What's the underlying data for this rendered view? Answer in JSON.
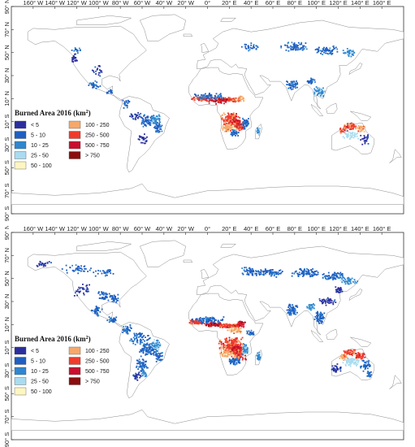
{
  "lon_labels": [
    "160° W",
    "140° W",
    "120° W",
    "100° W",
    "80° W",
    "60° W",
    "40° W",
    "20° W",
    "0°",
    "20° E",
    "40° E",
    "60° E",
    "80° E",
    "100° E",
    "120° E",
    "140° E",
    "160° E"
  ],
  "lat_labels": [
    "90° N",
    "70° N",
    "50° N",
    "30° N",
    "10° N",
    "10° S",
    "30° S",
    "50° S",
    "70° S",
    "90° S"
  ],
  "panels": [
    {
      "legend": {
        "title": "Burned Area 2016 (km²)",
        "items": [
          {
            "label": "< 5",
            "color": "#2b2f9e"
          },
          {
            "label": "5 - 10",
            "color": "#1f5fc0"
          },
          {
            "label": "10 - 25",
            "color": "#2f86cf"
          },
          {
            "label": "25 - 50",
            "color": "#a9dcf0"
          },
          {
            "label": "50 - 100",
            "color": "#fdf6c3"
          },
          {
            "label": "100 - 250",
            "color": "#f6a86a"
          },
          {
            "label": "250 - 500",
            "color": "#f03b2b"
          },
          {
            "label": "500 - 750",
            "color": "#c8102e"
          },
          {
            "label": "> 750",
            "color": "#8c0d0d"
          }
        ]
      }
    },
    {
      "legend": {
        "title": "Burned Area 2016 (km²)",
        "items": [
          {
            "label": "< 5",
            "color": "#2b2f9e"
          },
          {
            "label": "5 - 10",
            "color": "#1f5fc0"
          },
          {
            "label": "10 - 25",
            "color": "#2f86cf"
          },
          {
            "label": "25 - 50",
            "color": "#a9dcf0"
          },
          {
            "label": "50 - 100",
            "color": "#fdf6c3"
          },
          {
            "label": "100 - 250",
            "color": "#f6a86a"
          },
          {
            "label": "250 - 500",
            "color": "#f03b2b"
          },
          {
            "label": "500 - 750",
            "color": "#c8102e"
          },
          {
            "label": "> 750",
            "color": "#8c0d0d"
          }
        ]
      }
    }
  ]
}
